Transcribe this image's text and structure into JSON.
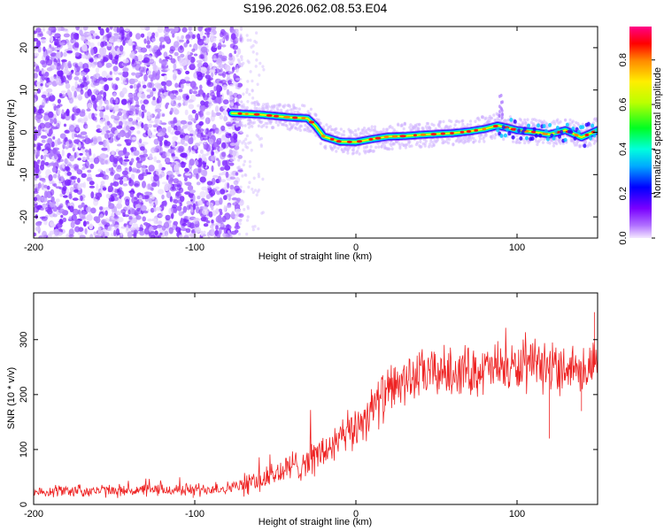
{
  "title": "S196.2026.062.08.53.E04",
  "chart_data": [
    {
      "type": "heatmap",
      "name": "frequency-residual-map",
      "xlabel": "Height of straight line (km)",
      "ylabel": "Frequency (Hz)",
      "xlim": [
        -200,
        150
      ],
      "ylim": [
        -25,
        25
      ],
      "x_ticks": [
        -200,
        -100,
        0,
        100
      ],
      "x_tick_labels": [
        "-200",
        "-100",
        "0",
        "100"
      ],
      "y_ticks": [
        -20,
        -10,
        0,
        10,
        20
      ],
      "y_tick_labels": [
        "-20",
        "-10",
        "0",
        "10",
        "20"
      ],
      "noise_region_x": [
        -200,
        -75
      ],
      "track": {
        "x": [
          -77,
          -60,
          -40,
          -30,
          -25,
          -20,
          -10,
          0,
          10,
          20,
          30,
          40,
          50,
          60,
          70,
          80,
          88,
          95,
          100,
          110,
          120,
          130,
          140,
          150
        ],
        "y": [
          4.5,
          4.2,
          3.5,
          3.3,
          1.5,
          -1.0,
          -2.2,
          -2.3,
          -1.6,
          -1.0,
          -0.9,
          -0.6,
          -0.4,
          -0.2,
          0.2,
          0.8,
          1.6,
          1.0,
          0.5,
          0.1,
          -0.5,
          0.5,
          -1.2,
          0.5
        ]
      },
      "colorbar": {
        "label": "Normalized spectral amplitude",
        "range": [
          0,
          0.95
        ],
        "ticks": [
          0.0,
          0.2,
          0.4,
          0.6,
          0.8
        ],
        "tick_labels": [
          "0.0",
          "0.2",
          "0.4",
          "0.6",
          "0.8"
        ]
      }
    },
    {
      "type": "line",
      "name": "snr-profile",
      "xlabel": "Height of straight line (km)",
      "ylabel": "SNR (10 * v/v)",
      "xlim": [
        -200,
        150
      ],
      "ylim": [
        0,
        385
      ],
      "x_ticks": [
        -200,
        -100,
        0,
        100
      ],
      "x_tick_labels": [
        "-200",
        "-100",
        "0",
        "100"
      ],
      "y_ticks": [
        0,
        100,
        200,
        300
      ],
      "y_tick_labels": [
        "0",
        "100",
        "200",
        "300"
      ],
      "color": "#ee2222",
      "trend": {
        "x": [
          -200,
          -150,
          -100,
          -80,
          -65,
          -50,
          -40,
          -30,
          -20,
          -10,
          0,
          10,
          20,
          30,
          40,
          50,
          60,
          80,
          100,
          120,
          150
        ],
        "y": [
          25,
          25,
          27,
          30,
          38,
          55,
          68,
          80,
          95,
          115,
          140,
          175,
          205,
          225,
          235,
          240,
          243,
          245,
          248,
          250,
          250
        ]
      }
    }
  ]
}
